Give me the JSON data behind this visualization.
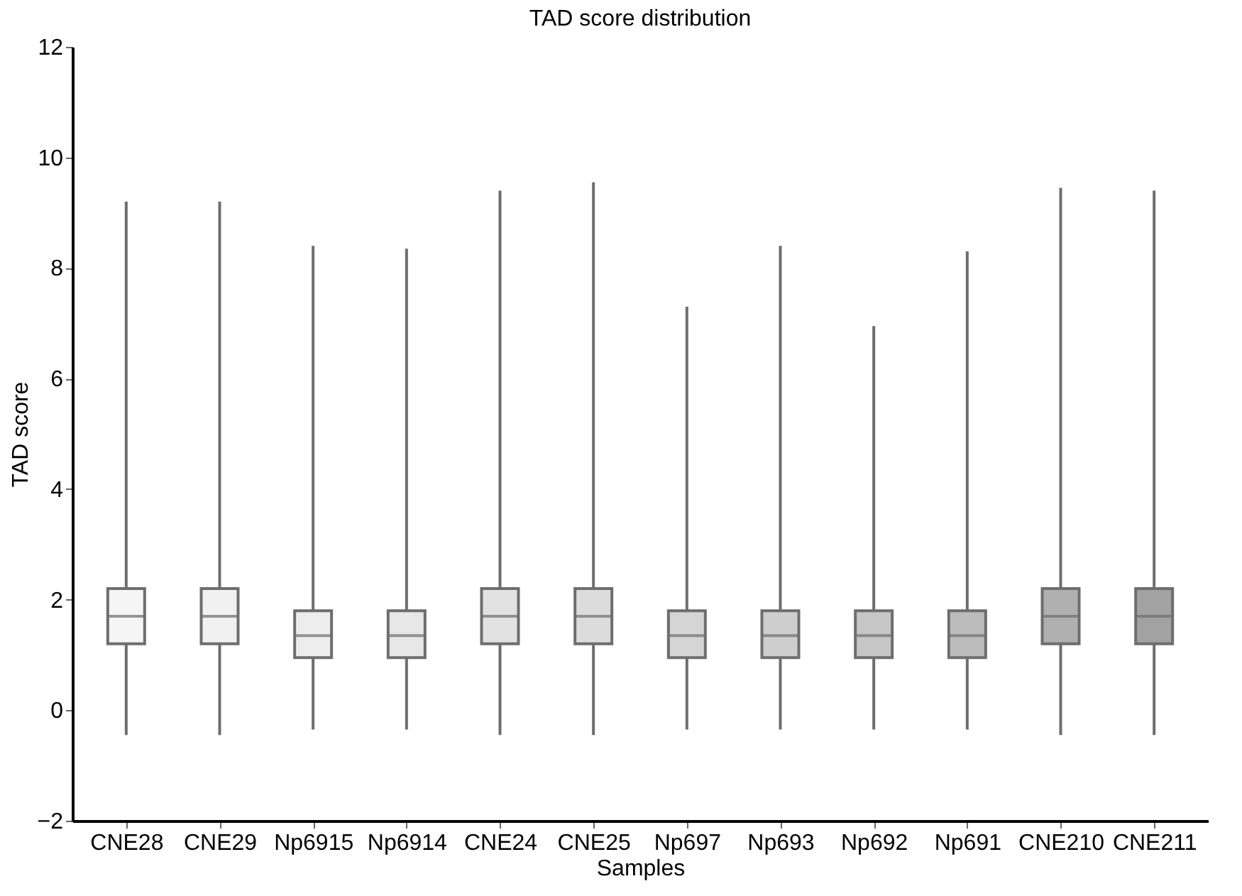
{
  "chart_data": {
    "type": "box",
    "title": "TAD score distribution",
    "xlabel": "Samples",
    "ylabel": "TAD score",
    "categories": [
      "CNE28",
      "CNE29",
      "Np6915",
      "Np6914",
      "CNE24",
      "CNE25",
      "Np697",
      "Np693",
      "Np692",
      "Np691",
      "CNE210",
      "CNE211"
    ],
    "colors": [
      "#f5f5f5",
      "#f1f1f1",
      "#ededed",
      "#e7e7e7",
      "#e2e2e2",
      "#dcdcdc",
      "#d5d5d5",
      "#cecece",
      "#c6c6c6",
      "#bcbcbc",
      "#b0b0b0",
      "#a2a2a2"
    ],
    "boxes": [
      {
        "low": -0.45,
        "q1": 1.2,
        "median": 1.7,
        "q3": 2.2,
        "high": 9.2
      },
      {
        "low": -0.45,
        "q1": 1.2,
        "median": 1.7,
        "q3": 2.2,
        "high": 9.2
      },
      {
        "low": -0.35,
        "q1": 0.95,
        "median": 1.35,
        "q3": 1.8,
        "high": 8.4
      },
      {
        "low": -0.35,
        "q1": 0.95,
        "median": 1.35,
        "q3": 1.8,
        "high": 8.35
      },
      {
        "low": -0.45,
        "q1": 1.2,
        "median": 1.7,
        "q3": 2.2,
        "high": 9.4
      },
      {
        "low": -0.45,
        "q1": 1.2,
        "median": 1.7,
        "q3": 2.2,
        "high": 9.55
      },
      {
        "low": -0.35,
        "q1": 0.95,
        "median": 1.35,
        "q3": 1.8,
        "high": 7.3
      },
      {
        "low": -0.35,
        "q1": 0.95,
        "median": 1.35,
        "q3": 1.8,
        "high": 8.4
      },
      {
        "low": -0.35,
        "q1": 0.95,
        "median": 1.35,
        "q3": 1.8,
        "high": 6.95
      },
      {
        "low": -0.35,
        "q1": 0.95,
        "median": 1.35,
        "q3": 1.8,
        "high": 8.3
      },
      {
        "low": -0.45,
        "q1": 1.2,
        "median": 1.7,
        "q3": 2.2,
        "high": 9.45
      },
      {
        "low": -0.45,
        "q1": 1.2,
        "median": 1.7,
        "q3": 2.2,
        "high": 9.4
      }
    ],
    "ylim": [
      -2,
      12
    ],
    "yticks": [
      {
        "value": -2,
        "label": "−2"
      },
      0,
      2,
      4,
      6,
      8,
      10,
      12
    ],
    "grid": false,
    "legend": false
  }
}
